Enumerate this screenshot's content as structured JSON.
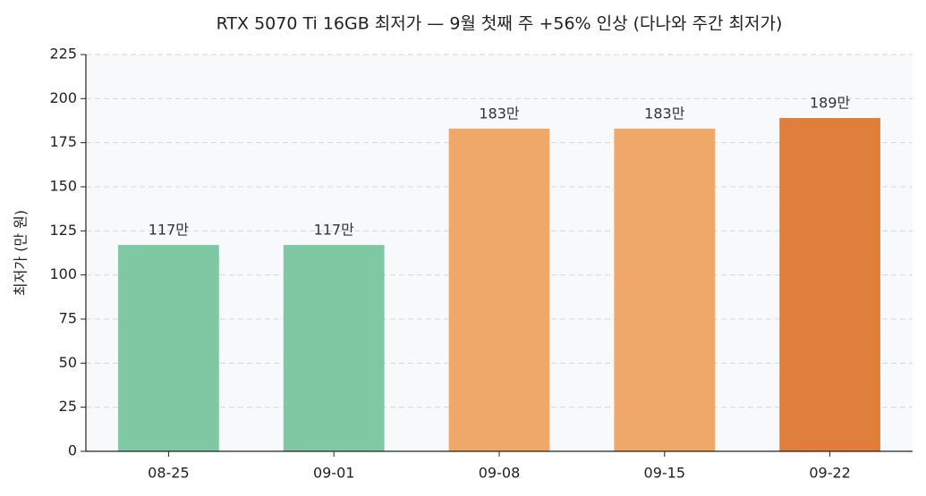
{
  "chart_data": {
    "type": "bar",
    "title": "RTX 5070 Ti 16GB 최저가 — 9월 첫째 주 +56% 인상 (다나와 주간 최저가)",
    "y_label": "최저가 (만 원)",
    "categories": [
      "08-25",
      "09-01",
      "09-08",
      "09-15",
      "09-22"
    ],
    "values": [
      117,
      117,
      183,
      183,
      189
    ],
    "value_labels": [
      "117만",
      "117만",
      "183만",
      "183만",
      "189만"
    ],
    "colors": [
      "#80c8a3",
      "#80c8a3",
      "#f0a868",
      "#f0a868",
      "#e07e3c"
    ],
    "ylim": [
      0,
      225
    ],
    "yticks": [
      0,
      25,
      50,
      75,
      100,
      125,
      150,
      175,
      200,
      225
    ],
    "grid": true
  }
}
